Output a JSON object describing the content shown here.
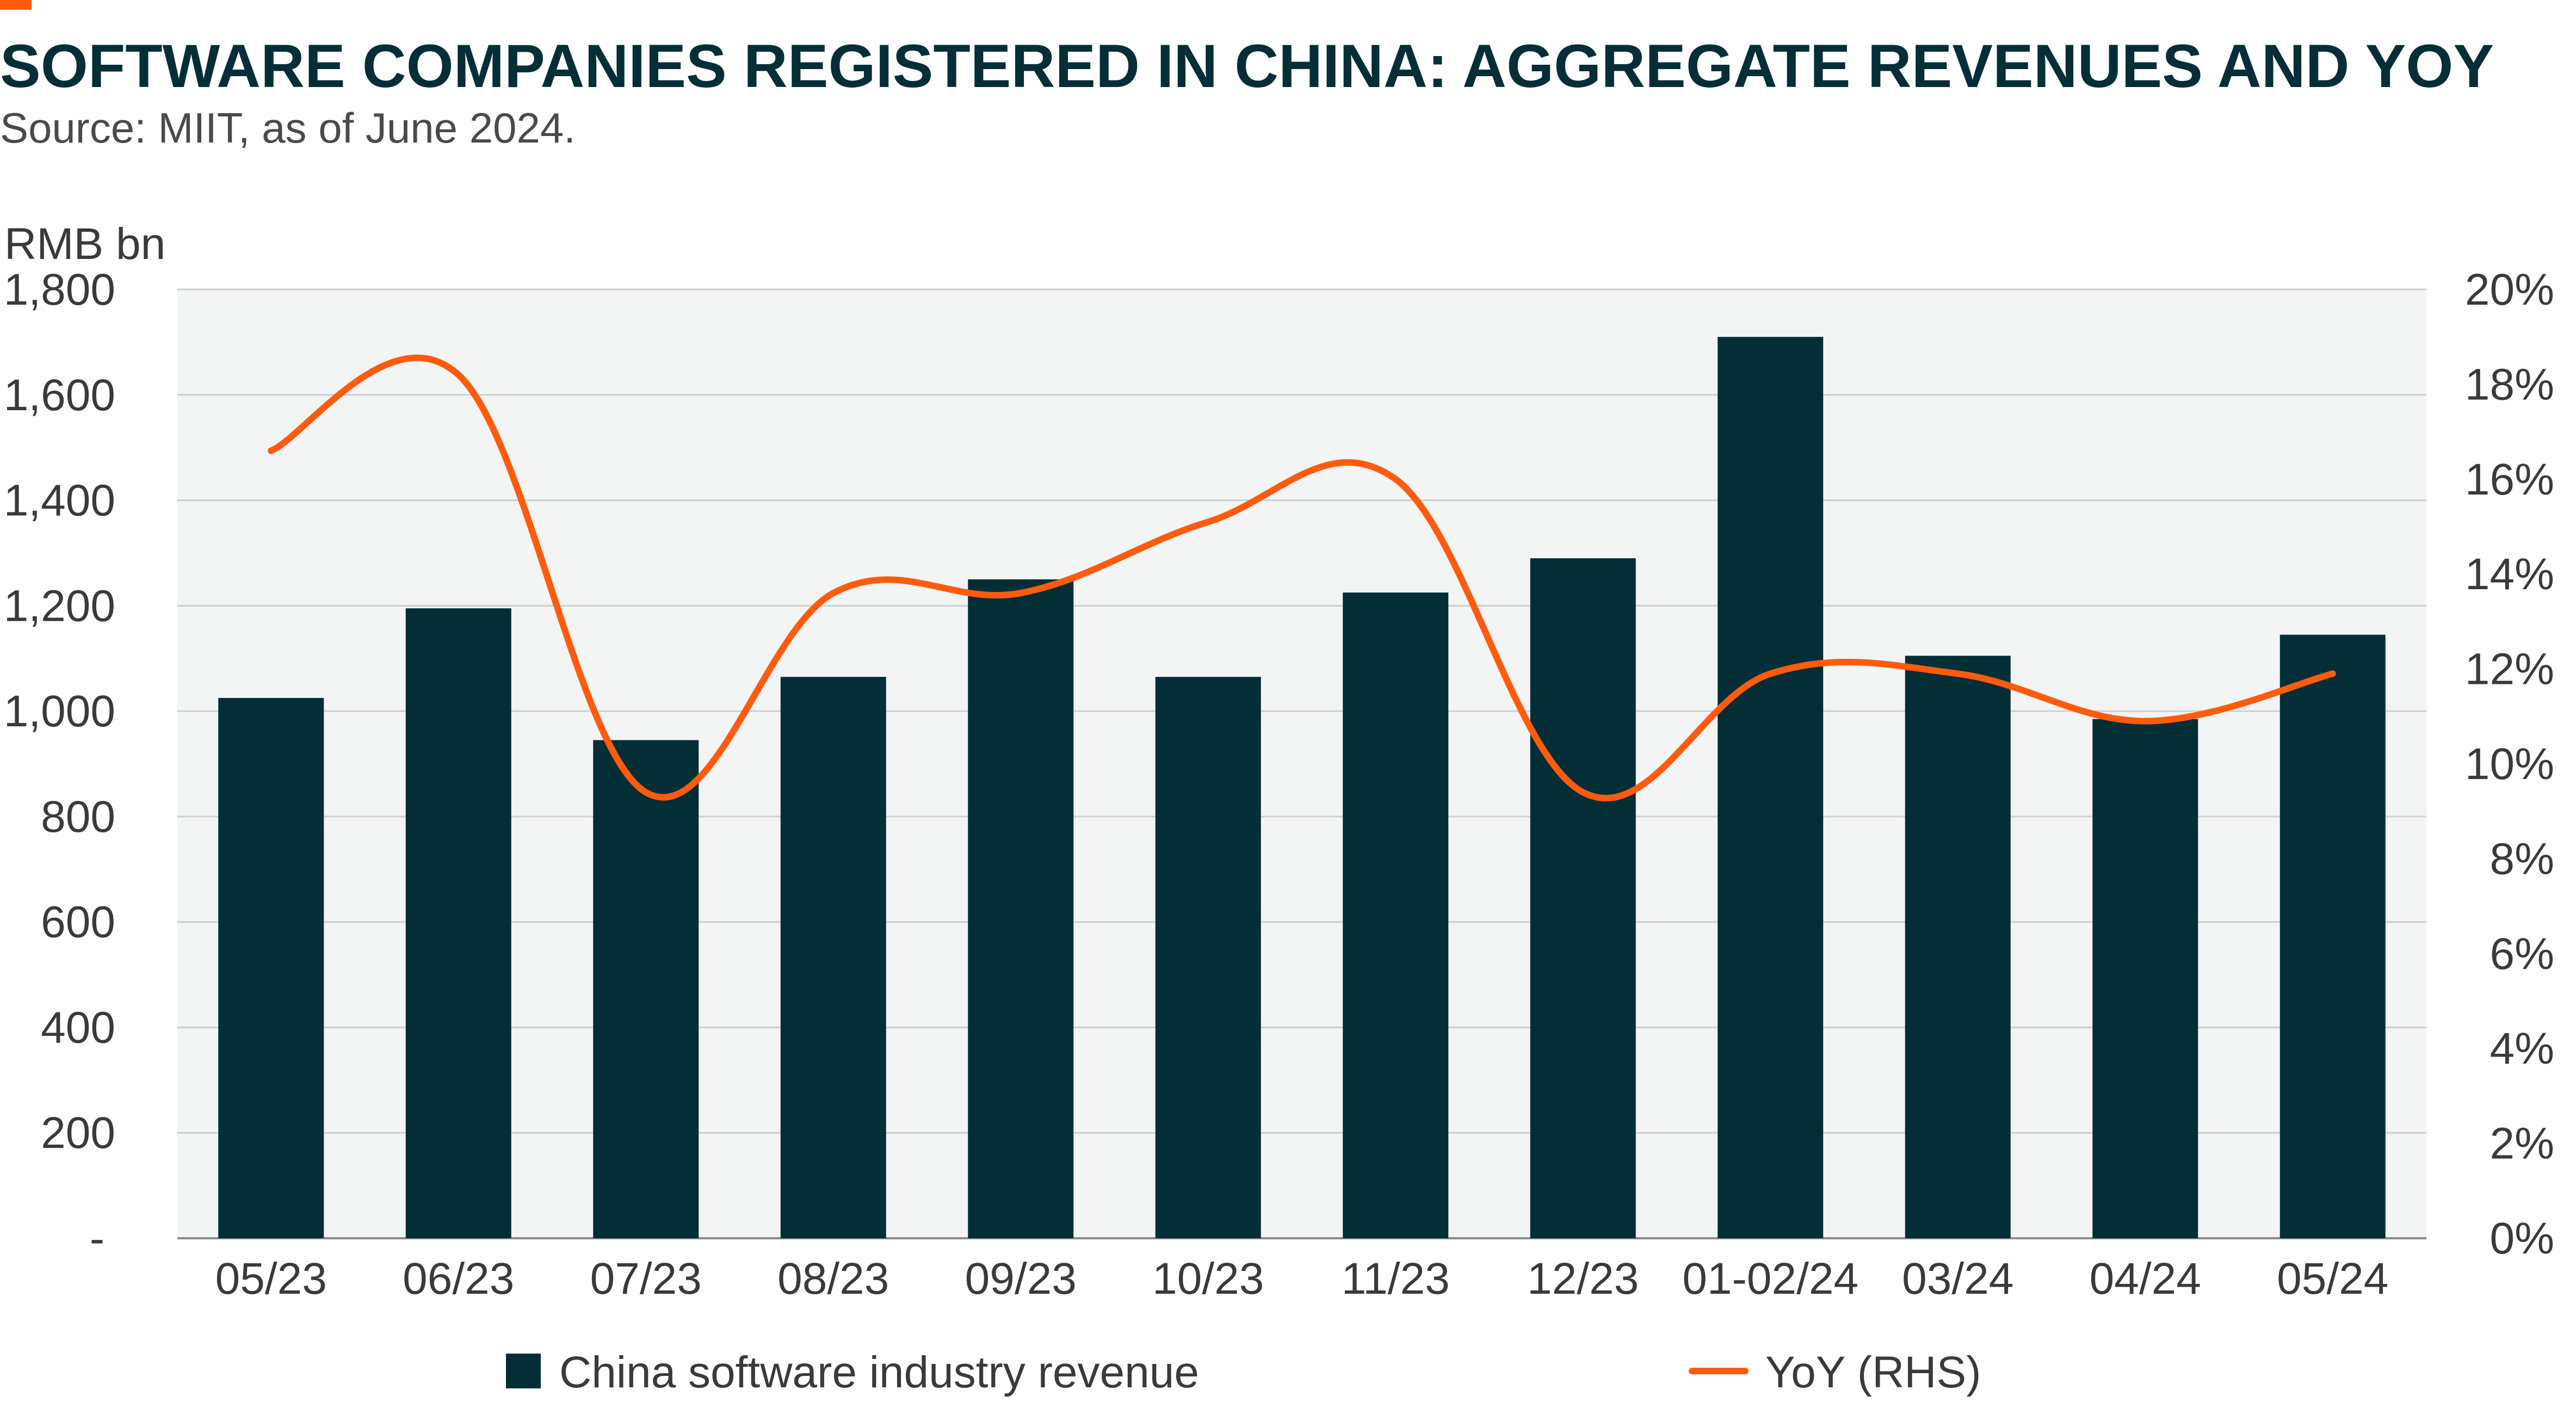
{
  "title": "SOFTWARE COMPANIES REGISTERED IN CHINA: AGGREGATE REVENUES AND YOY",
  "subtitle": "Source: MIIT, as of June 2024.",
  "colors": {
    "bar": "#032e36",
    "line": "#ff5b0f",
    "accent": "#ff5b0f",
    "plot_bg": "#f3f4f4"
  },
  "chart_data": {
    "type": "bar",
    "categories": [
      "05/23",
      "06/23",
      "07/23",
      "08/23",
      "09/23",
      "10/23",
      "11/23",
      "12/23",
      "01-02/24",
      "03/24",
      "04/24",
      "05/24"
    ],
    "series": [
      {
        "name": "China software industry revenue",
        "type": "bar",
        "axis": "left",
        "values": [
          1025,
          1195,
          945,
          1065,
          1250,
          1065,
          1225,
          1290,
          1710,
          1105,
          985,
          1145
        ]
      },
      {
        "name": "YoY (RHS)",
        "type": "line",
        "axis": "right",
        "values": [
          16.6,
          18.2,
          9.4,
          13.6,
          13.6,
          15.1,
          16.0,
          9.4,
          11.9,
          11.9,
          10.9,
          11.9
        ]
      }
    ],
    "ylabel": "RMB bn",
    "ylim": [
      0,
      1800
    ],
    "yticks": [
      "-",
      "200",
      "400",
      "600",
      "800",
      "1,000",
      "1,200",
      "1,400",
      "1,600",
      "1,800"
    ],
    "y2lim": [
      0,
      20
    ],
    "y2ticks": [
      "0%",
      "2%",
      "4%",
      "6%",
      "8%",
      "10%",
      "12%",
      "14%",
      "16%",
      "18%",
      "20%"
    ],
    "grid": true,
    "legend": "bottom"
  }
}
